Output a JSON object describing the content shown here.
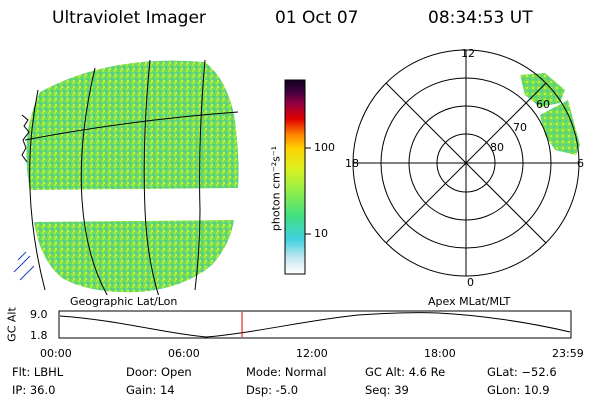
{
  "header": {
    "title": "Ultraviolet Imager",
    "date": "01 Oct 07",
    "time": "08:34:53 UT"
  },
  "colorbar": {
    "unit_label": "photon cm⁻²s⁻¹",
    "ticks": [
      "100",
      "10"
    ],
    "colors": [
      "#ffffff",
      "#c8e8f0",
      "#40d0e0",
      "#40e080",
      "#a0f040",
      "#e0f020",
      "#ffd000",
      "#ff8000",
      "#e00000",
      "#900040",
      "#400040",
      "#100020"
    ]
  },
  "left_map": {
    "caption": "Geographic Lat/Lon"
  },
  "right_polar": {
    "caption": "Apex MLat/MLT",
    "mlt_labels": [
      "12",
      "18",
      "6",
      "0"
    ],
    "lat_labels": [
      "60",
      "70",
      "80"
    ]
  },
  "altitude_plot": {
    "ylabel": "GC Alt",
    "ymax": "9.0",
    "ymin": "1.8",
    "xticks": [
      "00:00",
      "06:00",
      "12:00",
      "18:00",
      "23:59"
    ],
    "current_time_hours": 8.58
  },
  "status": {
    "flt": "Flt: LBHL",
    "ip": "IP: 36.0",
    "door": "Door: Open",
    "gain": "Gain: 14",
    "mode": "Mode: Normal",
    "dsp": "Dsp:   -5.0",
    "gcalt": "GC Alt: 4.6 Re",
    "seq": "Seq: 39",
    "glat": "GLat: −52.6",
    "glon": "GLon:  10.9"
  },
  "colors": {
    "aurora_green": "#60d860",
    "aurora_yellow": "#d8f040",
    "aurora_cyan": "#40d0c0",
    "marker_red": "#e00000"
  }
}
